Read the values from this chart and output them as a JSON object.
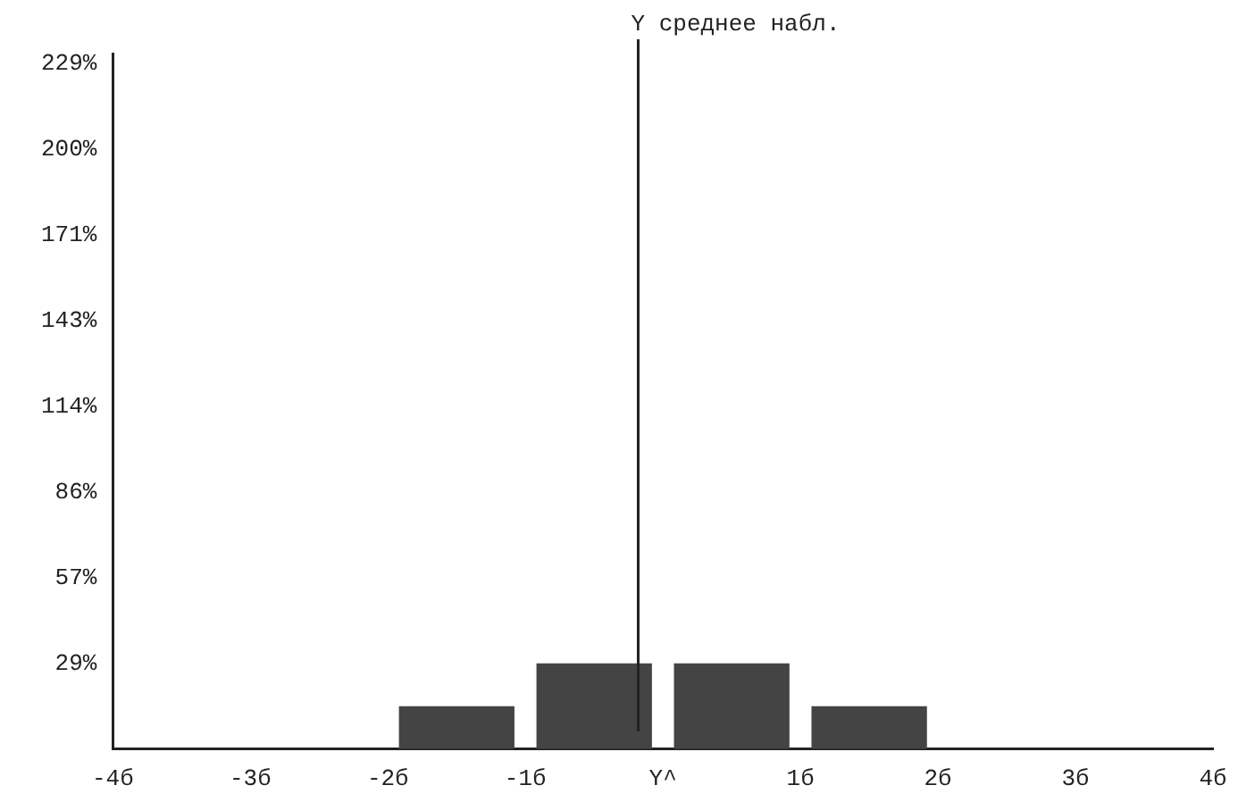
{
  "chart_data": {
    "type": "histogram",
    "bins": [
      -2,
      -1,
      0,
      1,
      2
    ],
    "values": [
      14.3,
      28.6,
      28.6,
      14.3
    ],
    "color": "#444444",
    "xlim": [
      -4,
      4
    ],
    "xticks": [
      {
        "value": -4,
        "label": "-4б"
      },
      {
        "value": -3,
        "label": "-3б"
      },
      {
        "value": -2,
        "label": "-2б"
      },
      {
        "value": -1,
        "label": "-1б"
      },
      {
        "value": 0,
        "label": "Y^"
      },
      {
        "value": 1,
        "label": "1б"
      },
      {
        "value": 2,
        "label": "2б"
      },
      {
        "value": 3,
        "label": "3б"
      },
      {
        "value": 4,
        "label": "4б"
      }
    ],
    "ylim": [
      0,
      232
    ],
    "yticks": [
      {
        "value": 28.57,
        "label": "29%"
      },
      {
        "value": 57.14,
        "label": "57%"
      },
      {
        "value": 85.71,
        "label": "86%"
      },
      {
        "value": 114.29,
        "label": "114%"
      },
      {
        "value": 142.86,
        "label": "143%"
      },
      {
        "value": 171.43,
        "label": "171%"
      },
      {
        "value": 200,
        "label": "200%"
      },
      {
        "value": 228.57,
        "label": "229%"
      }
    ],
    "ref_lines": [
      {
        "axis": "x",
        "value": -0.18,
        "label": "Y среднее набл."
      }
    ],
    "grid": false,
    "legend": false
  }
}
